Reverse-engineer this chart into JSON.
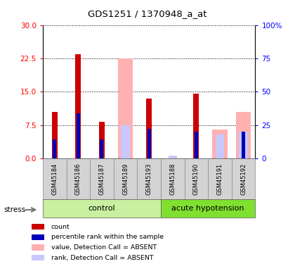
{
  "title": "GDS1251 / 1370948_a_at",
  "samples": [
    "GSM45184",
    "GSM45186",
    "GSM45187",
    "GSM45189",
    "GSM45193",
    "GSM45188",
    "GSM45190",
    "GSM45191",
    "GSM45192"
  ],
  "count_values": [
    10.5,
    23.5,
    8.2,
    0,
    13.5,
    0,
    14.5,
    0,
    0
  ],
  "rank_values": [
    14,
    34,
    14,
    0,
    22,
    0,
    20,
    0,
    20
  ],
  "absent_value_values": [
    0,
    0,
    0,
    22.5,
    0,
    0,
    0,
    6.5,
    10.5
  ],
  "absent_rank_values": [
    0,
    0,
    0,
    25,
    0,
    2,
    0,
    18,
    20
  ],
  "ylim_left": [
    0,
    30
  ],
  "ylim_right": [
    0,
    100
  ],
  "yticks_left": [
    0,
    7.5,
    15,
    22.5,
    30
  ],
  "yticks_right": [
    0,
    25,
    50,
    75,
    100
  ],
  "color_count": "#cc0000",
  "color_rank": "#0000bb",
  "color_absent_value": "#ffb0b0",
  "color_absent_rank": "#c8c8ff",
  "group_bg_light": "#c8f0a0",
  "group_bg_mid": "#80e030",
  "tick_bg": "#d3d3d3",
  "control_indices": [
    0,
    1,
    2,
    3,
    4
  ],
  "acute_indices": [
    5,
    6,
    7,
    8
  ]
}
